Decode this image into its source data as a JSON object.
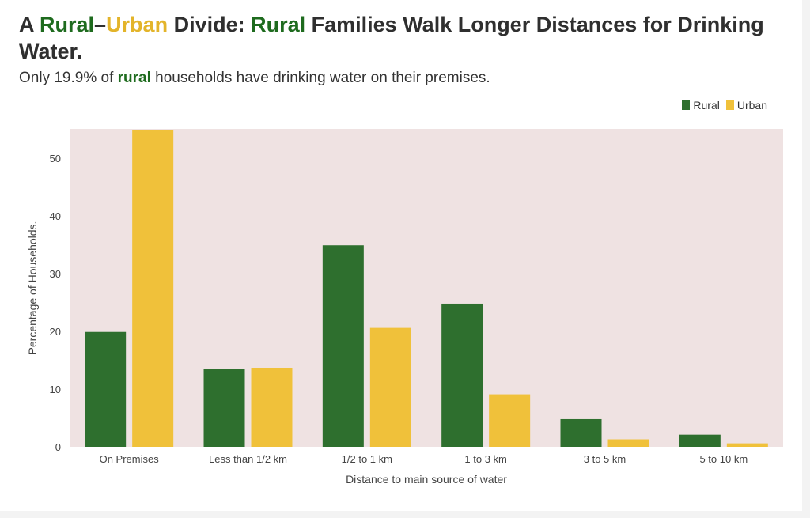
{
  "title": {
    "part1": "A ",
    "rural": "Rural",
    "dash": "–",
    "urban": "Urban",
    "part2": " Divide: ",
    "rural2": "Rural",
    "part3": " Families Walk Longer Distances for Drinking Water."
  },
  "subtitle": {
    "pre": "Only 19.9% of ",
    "highlight": "rural",
    "post": " households have drinking water on their premises."
  },
  "colors": {
    "rural": "#2e6f2e",
    "urban": "#f0c13a",
    "plot_bg": "#efe2e2"
  },
  "chart_data": {
    "type": "bar",
    "categories": [
      "On Premises",
      "Less than 1/2 km",
      "1/2 to 1 km",
      "1 to 3 km",
      "3 to 5 km",
      "5 to 10 km"
    ],
    "series": [
      {
        "name": "Rural",
        "values": [
          19.9,
          13.5,
          34.9,
          24.8,
          4.8,
          2.1
        ]
      },
      {
        "name": "Urban",
        "values": [
          54.8,
          13.7,
          20.6,
          9.1,
          1.3,
          0.6
        ]
      }
    ],
    "xlabel": "Distance to main source of water",
    "ylabel": "Percentage of Households.",
    "ylim": [
      0,
      55
    ],
    "yticks": [
      0,
      10,
      20,
      30,
      40,
      50
    ],
    "legend_position": "top-right",
    "grid": false
  }
}
